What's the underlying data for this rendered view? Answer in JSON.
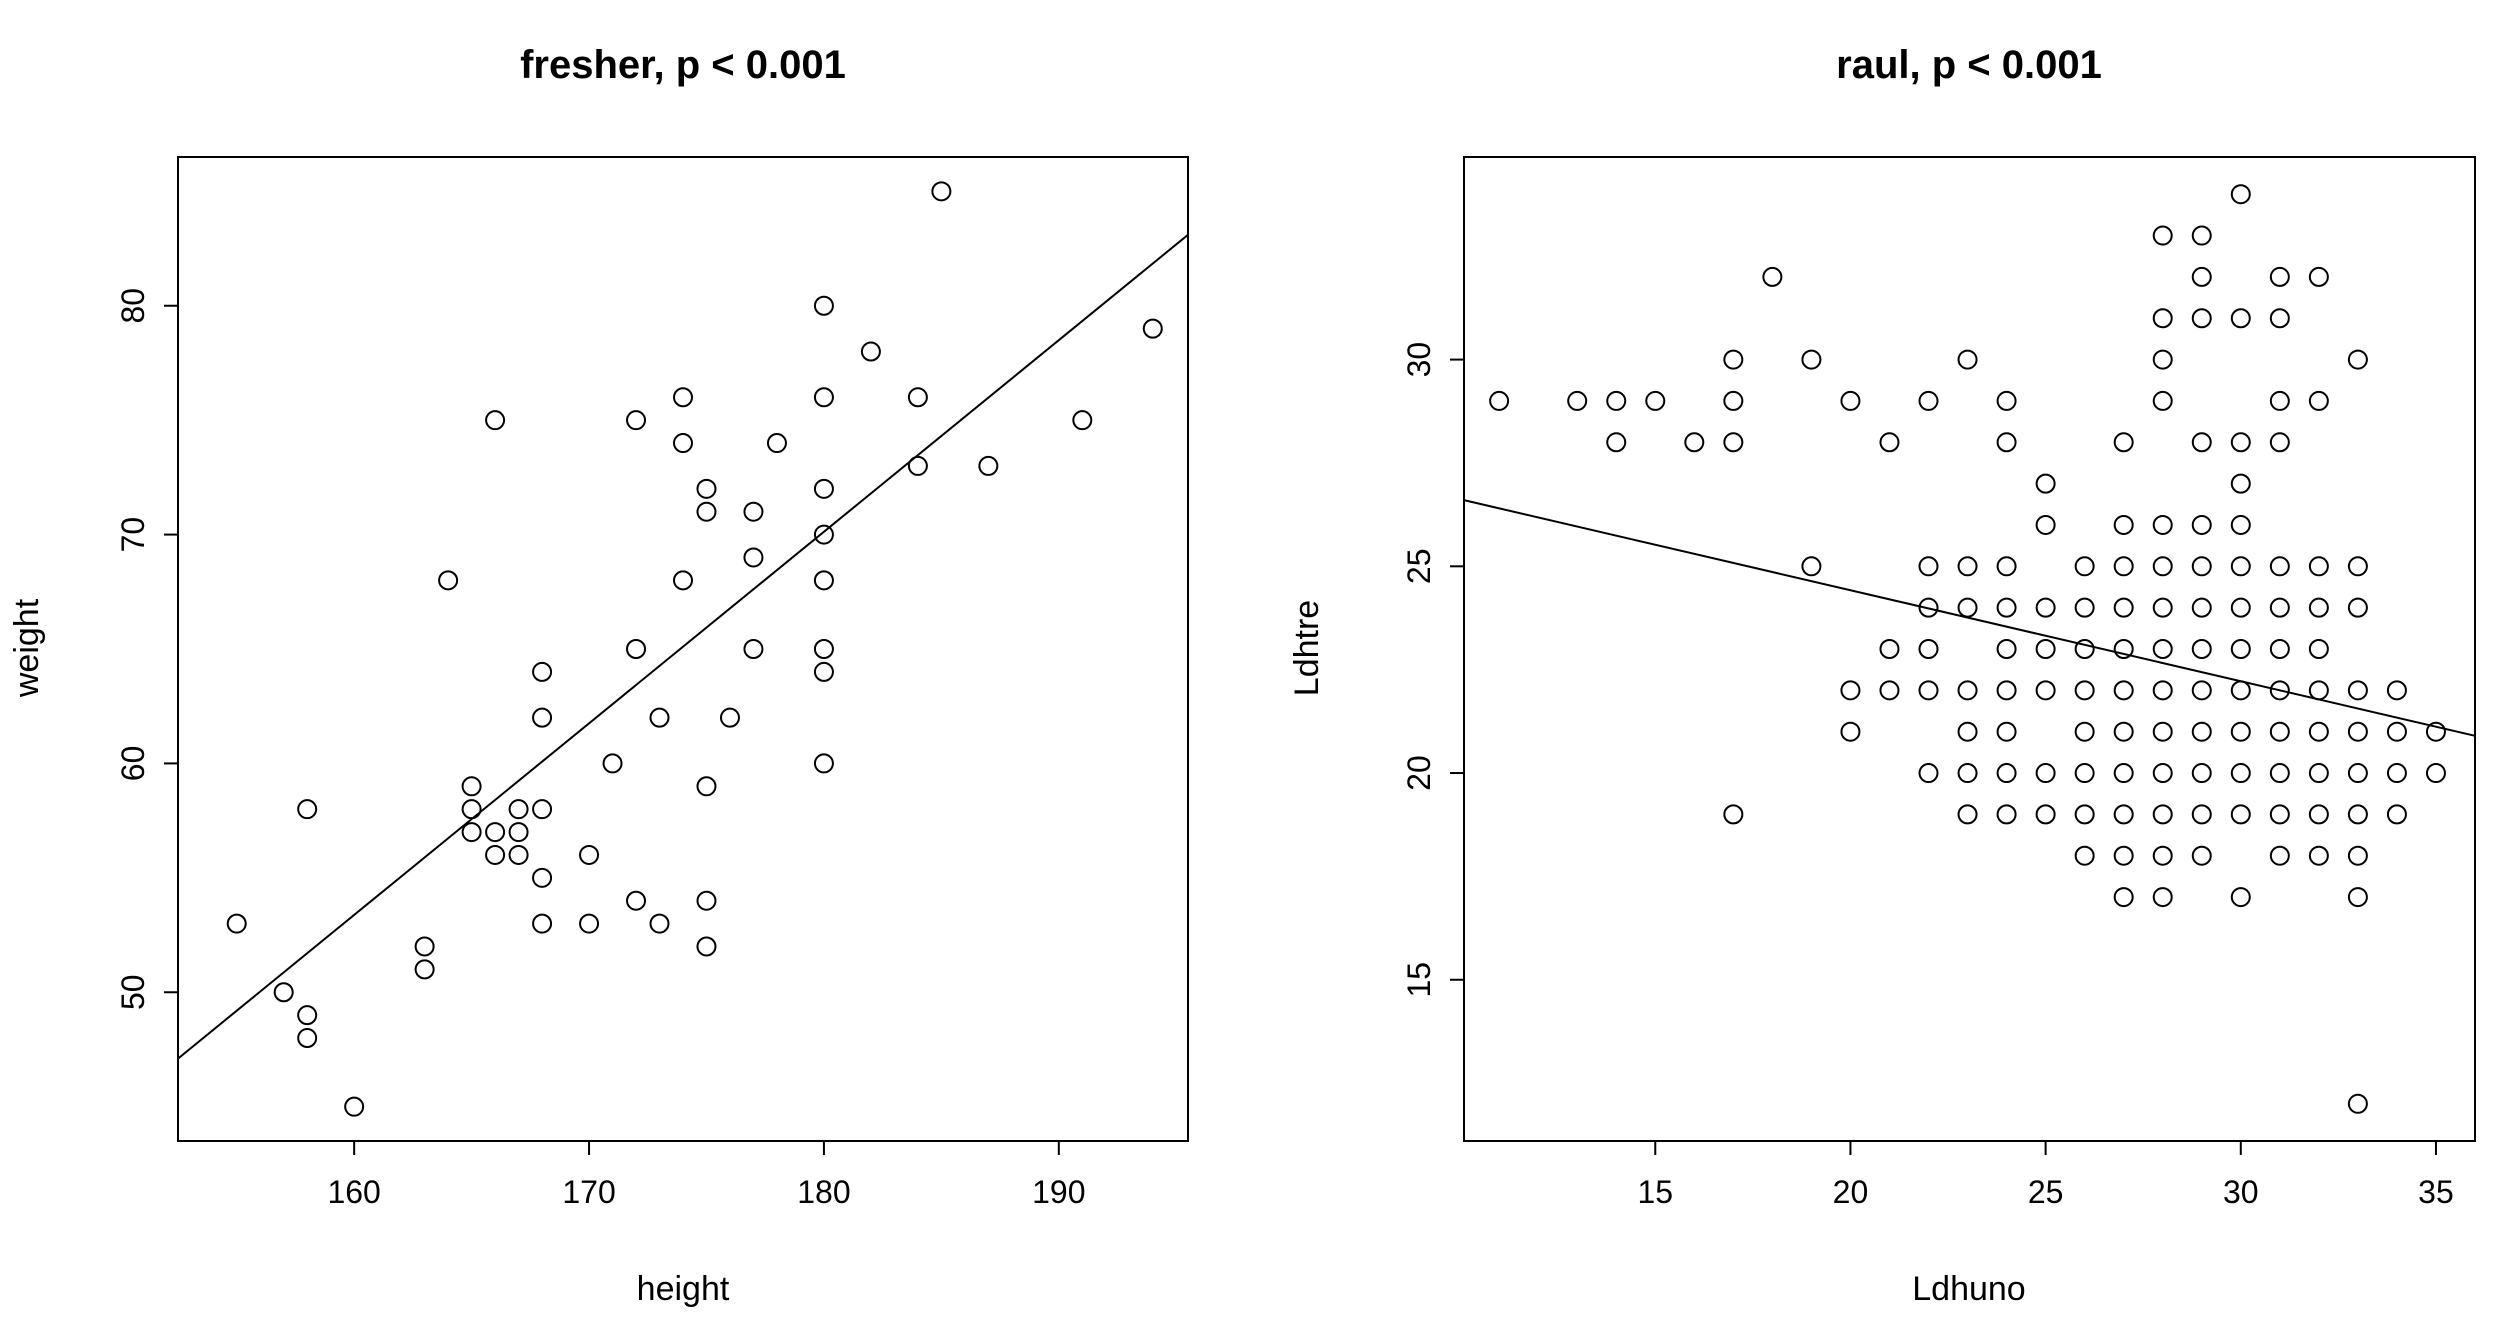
{
  "chart_data": [
    {
      "type": "scatter",
      "title": "fresher, p < 0.001",
      "xlabel": "height",
      "ylabel": "weight",
      "xlim": [
        152.5,
        195.5
      ],
      "ylim": [
        43.5,
        86.5
      ],
      "xticks": [
        "160",
        "170",
        "180",
        "190"
      ],
      "yticks": [
        "50",
        "60",
        "70",
        "80"
      ],
      "trend_line": {
        "x": [
          152.5,
          195.5
        ],
        "y": [
          47.1,
          83.1
        ]
      },
      "points": [
        [
          155,
          53
        ],
        [
          157,
          50
        ],
        [
          158,
          58
        ],
        [
          158,
          49
        ],
        [
          158,
          48
        ],
        [
          160,
          45
        ],
        [
          163,
          52
        ],
        [
          163,
          51
        ],
        [
          164,
          68
        ],
        [
          165,
          59
        ],
        [
          165,
          58
        ],
        [
          165,
          57
        ],
        [
          166,
          57
        ],
        [
          166,
          56
        ],
        [
          166,
          75
        ],
        [
          167,
          58
        ],
        [
          167,
          57
        ],
        [
          167,
          56
        ],
        [
          168,
          64
        ],
        [
          168,
          62
        ],
        [
          168,
          58
        ],
        [
          168,
          55
        ],
        [
          168,
          53
        ],
        [
          170,
          56
        ],
        [
          170,
          53
        ],
        [
          171,
          60
        ],
        [
          172,
          75
        ],
        [
          172,
          65
        ],
        [
          172,
          54
        ],
        [
          173,
          62
        ],
        [
          173,
          53
        ],
        [
          174,
          76
        ],
        [
          174,
          74
        ],
        [
          174,
          68
        ],
        [
          175,
          72
        ],
        [
          175,
          71
        ],
        [
          175,
          59
        ],
        [
          175,
          54
        ],
        [
          175,
          52
        ],
        [
          176,
          62
        ],
        [
          177,
          71
        ],
        [
          177,
          69
        ],
        [
          177,
          65
        ],
        [
          178,
          74
        ],
        [
          180,
          80
        ],
        [
          180,
          76
        ],
        [
          180,
          72
        ],
        [
          180,
          70
        ],
        [
          180,
          68
        ],
        [
          180,
          65
        ],
        [
          180,
          64
        ],
        [
          180,
          60
        ],
        [
          182,
          78
        ],
        [
          184,
          76
        ],
        [
          184,
          73
        ],
        [
          185,
          85
        ],
        [
          187,
          73
        ],
        [
          191,
          75
        ],
        [
          194,
          79
        ]
      ]
    },
    {
      "type": "scatter",
      "title": "raul, p < 0.001",
      "xlabel": "Ldhuno",
      "ylabel": "Ldhtre",
      "xlim": [
        10.1,
        36.0
      ],
      "ylim": [
        11.1,
        34.9
      ],
      "xticks": [
        "15",
        "20",
        "25",
        "30",
        "35"
      ],
      "yticks": [
        "15",
        "20",
        "25",
        "30"
      ],
      "trend_line": {
        "x": [
          10.1,
          36.0
        ],
        "y": [
          26.6,
          20.9
        ]
      },
      "points": [
        [
          11,
          29
        ],
        [
          13,
          29
        ],
        [
          14,
          29
        ],
        [
          14,
          28
        ],
        [
          15,
          29
        ],
        [
          16,
          28
        ],
        [
          17,
          30
        ],
        [
          17,
          29
        ],
        [
          17,
          28
        ],
        [
          17,
          19
        ],
        [
          18,
          32
        ],
        [
          19,
          30
        ],
        [
          19,
          25
        ],
        [
          20,
          29
        ],
        [
          20,
          22
        ],
        [
          20,
          21
        ],
        [
          21,
          28
        ],
        [
          21,
          23
        ],
        [
          21,
          22
        ],
        [
          22,
          29
        ],
        [
          22,
          25
        ],
        [
          22,
          24
        ],
        [
          22,
          23
        ],
        [
          22,
          22
        ],
        [
          22,
          20
        ],
        [
          23,
          30
        ],
        [
          23,
          25
        ],
        [
          23,
          24
        ],
        [
          23,
          22
        ],
        [
          23,
          21
        ],
        [
          23,
          20
        ],
        [
          23,
          19
        ],
        [
          24,
          29
        ],
        [
          24,
          28
        ],
        [
          24,
          25
        ],
        [
          24,
          24
        ],
        [
          24,
          23
        ],
        [
          24,
          22
        ],
        [
          24,
          21
        ],
        [
          24,
          20
        ],
        [
          24,
          19
        ],
        [
          25,
          27
        ],
        [
          25,
          26
        ],
        [
          25,
          24
        ],
        [
          25,
          23
        ],
        [
          25,
          22
        ],
        [
          25,
          20
        ],
        [
          25,
          19
        ],
        [
          26,
          25
        ],
        [
          26,
          24
        ],
        [
          26,
          23
        ],
        [
          26,
          22
        ],
        [
          26,
          21
        ],
        [
          26,
          20
        ],
        [
          26,
          19
        ],
        [
          26,
          18
        ],
        [
          27,
          28
        ],
        [
          27,
          26
        ],
        [
          27,
          25
        ],
        [
          27,
          24
        ],
        [
          27,
          23
        ],
        [
          27,
          22
        ],
        [
          27,
          21
        ],
        [
          27,
          20
        ],
        [
          27,
          19
        ],
        [
          27,
          18
        ],
        [
          27,
          17
        ],
        [
          28,
          33
        ],
        [
          28,
          31
        ],
        [
          28,
          30
        ],
        [
          28,
          29
        ],
        [
          28,
          26
        ],
        [
          28,
          25
        ],
        [
          28,
          24
        ],
        [
          28,
          23
        ],
        [
          28,
          22
        ],
        [
          28,
          21
        ],
        [
          28,
          20
        ],
        [
          28,
          19
        ],
        [
          28,
          18
        ],
        [
          28,
          17
        ],
        [
          29,
          33
        ],
        [
          29,
          32
        ],
        [
          29,
          31
        ],
        [
          29,
          28
        ],
        [
          29,
          26
        ],
        [
          29,
          25
        ],
        [
          29,
          24
        ],
        [
          29,
          23
        ],
        [
          29,
          22
        ],
        [
          29,
          21
        ],
        [
          29,
          20
        ],
        [
          29,
          19
        ],
        [
          29,
          18
        ],
        [
          30,
          34
        ],
        [
          30,
          31
        ],
        [
          30,
          28
        ],
        [
          30,
          27
        ],
        [
          30,
          26
        ],
        [
          30,
          25
        ],
        [
          30,
          24
        ],
        [
          30,
          23
        ],
        [
          30,
          22
        ],
        [
          30,
          21
        ],
        [
          30,
          20
        ],
        [
          30,
          19
        ],
        [
          30,
          17
        ],
        [
          31,
          32
        ],
        [
          31,
          31
        ],
        [
          31,
          29
        ],
        [
          31,
          28
        ],
        [
          31,
          25
        ],
        [
          31,
          24
        ],
        [
          31,
          23
        ],
        [
          31,
          22
        ],
        [
          31,
          21
        ],
        [
          31,
          20
        ],
        [
          31,
          19
        ],
        [
          31,
          18
        ],
        [
          32,
          32
        ],
        [
          32,
          29
        ],
        [
          32,
          25
        ],
        [
          32,
          24
        ],
        [
          32,
          23
        ],
        [
          32,
          22
        ],
        [
          32,
          21
        ],
        [
          32,
          20
        ],
        [
          32,
          19
        ],
        [
          32,
          18
        ],
        [
          33,
          30
        ],
        [
          33,
          25
        ],
        [
          33,
          24
        ],
        [
          33,
          22
        ],
        [
          33,
          21
        ],
        [
          33,
          20
        ],
        [
          33,
          19
        ],
        [
          33,
          18
        ],
        [
          33,
          17
        ],
        [
          33,
          12
        ],
        [
          34,
          22
        ],
        [
          34,
          21
        ],
        [
          34,
          20
        ],
        [
          34,
          19
        ],
        [
          35,
          21
        ],
        [
          35,
          20
        ]
      ]
    }
  ]
}
